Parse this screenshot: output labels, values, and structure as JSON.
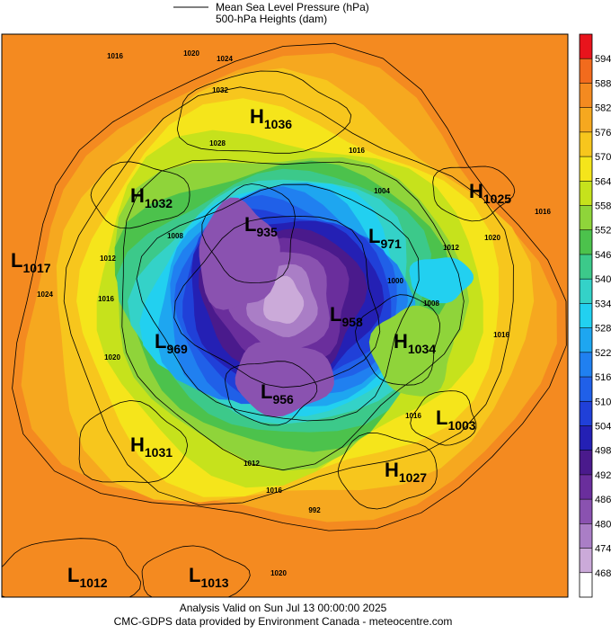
{
  "legend": {
    "lines": [
      "Mean Sea Level Pressure (hPa)",
      "500-hPa Heights (dam)"
    ]
  },
  "colorbar": {
    "ticks": [
      594,
      588,
      582,
      576,
      570,
      564,
      558,
      552,
      546,
      540,
      534,
      528,
      522,
      516,
      510,
      504,
      498,
      492,
      486,
      480,
      474,
      468
    ],
    "colors": [
      "#e8141c",
      "#f26b1d",
      "#f48a20",
      "#f6a81f",
      "#f7c61d",
      "#f5e51b",
      "#c6e21c",
      "#8fd43a",
      "#4cc24c",
      "#3cc98a",
      "#34d2c8",
      "#22d0f0",
      "#1ea6f0",
      "#2080f0",
      "#2060e8",
      "#2040d8",
      "#2420b4",
      "#4a1a8c",
      "#6a2e9c",
      "#8a52b0",
      "#aa7ec6",
      "#cbaad9",
      "#ffffff"
    ]
  },
  "centers": [
    {
      "type": "H",
      "value": 1036
    },
    {
      "type": "H",
      "value": 1032
    },
    {
      "type": "H",
      "value": 1025
    },
    {
      "type": "L",
      "value": 1017
    },
    {
      "type": "L",
      "value": 935
    },
    {
      "type": "L",
      "value": 971
    },
    {
      "type": "L",
      "value": 958
    },
    {
      "type": "L",
      "value": 969
    },
    {
      "type": "H",
      "value": 1034
    },
    {
      "type": "L",
      "value": 956
    },
    {
      "type": "L",
      "value": 1003
    },
    {
      "type": "H",
      "value": 1031
    },
    {
      "type": "H",
      "value": 1027
    },
    {
      "type": "L",
      "value": 1012
    },
    {
      "type": "L",
      "value": 1013
    }
  ],
  "isobar_labels": [
    1016,
    1020,
    1024,
    1032,
    1028,
    1016,
    1004,
    1012,
    1020,
    1016,
    1000,
    1008,
    1016,
    1024,
    1016,
    1020,
    1008,
    1012,
    1012,
    1016,
    992,
    1020,
    1016
  ],
  "footer": [
    "Analysis Valid on Sun Jul 13 00:00:00 2025",
    "CMC-GDPS data provided by Environment Canada - meteocentre.com"
  ]
}
